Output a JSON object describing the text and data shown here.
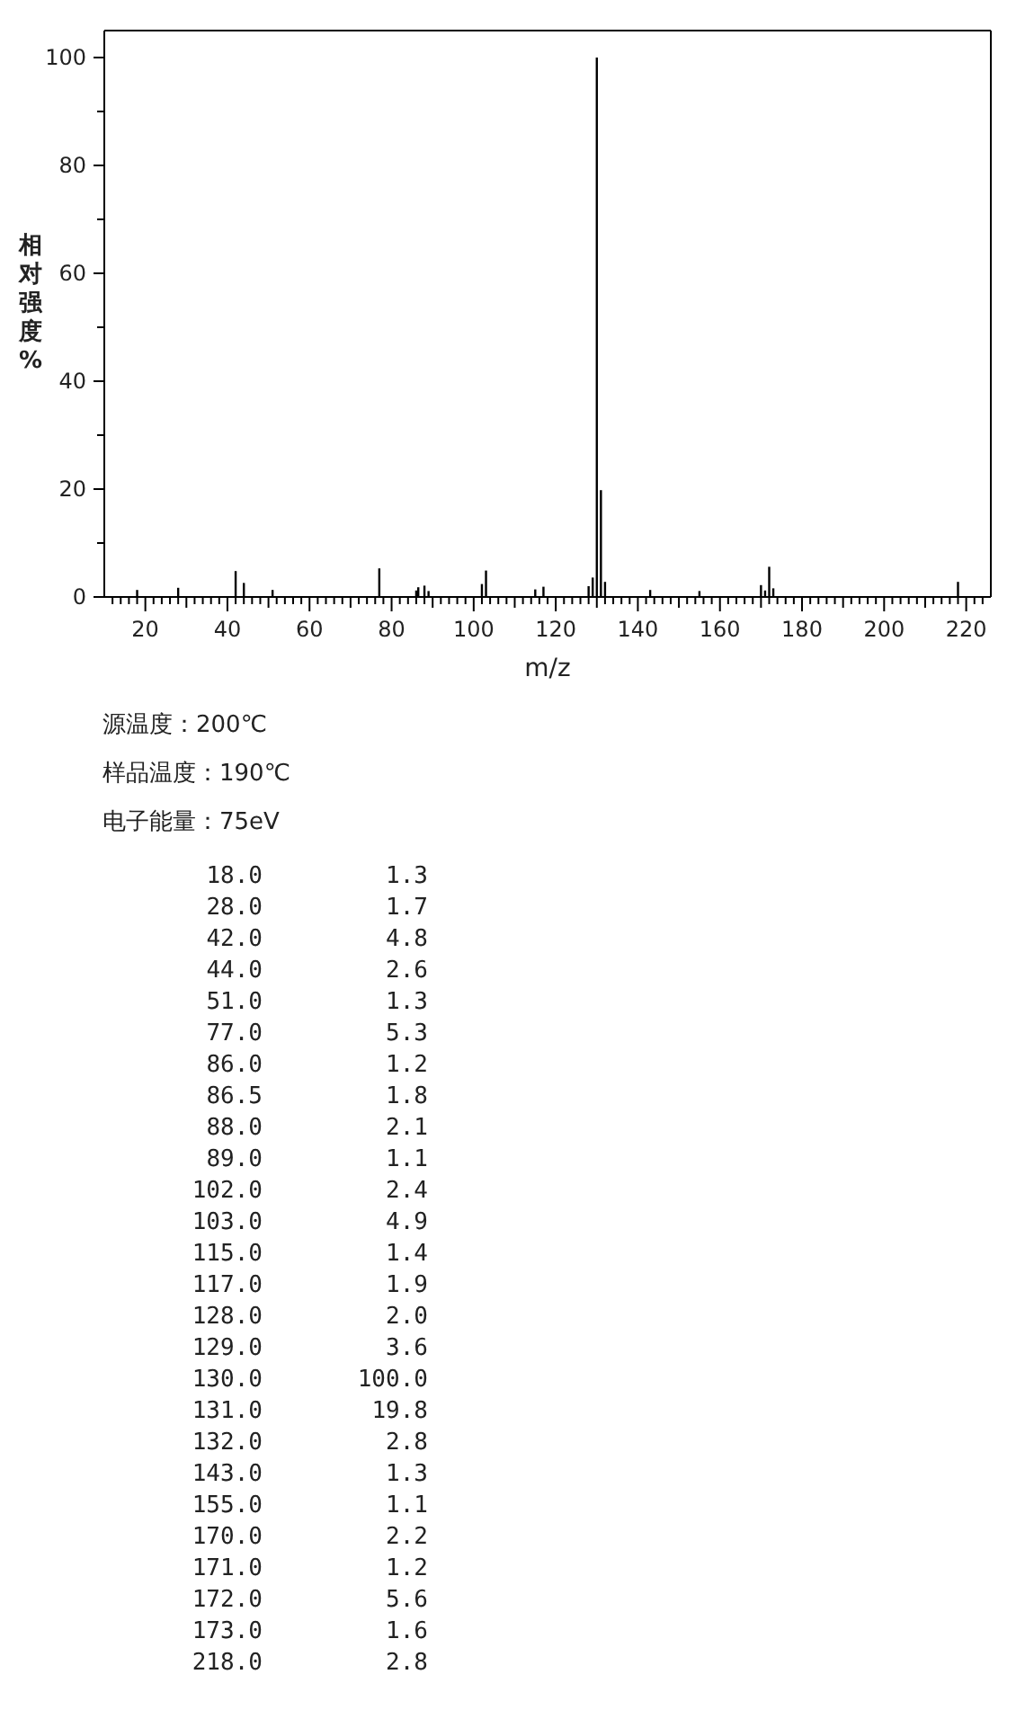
{
  "chart_data": [
    {
      "type": "bar",
      "xlabel": "m/z",
      "ylabel": "相对强度%",
      "x": [
        18.0,
        28.0,
        42.0,
        44.0,
        51.0,
        77.0,
        86.0,
        86.5,
        88.0,
        89.0,
        102.0,
        103.0,
        115.0,
        117.0,
        128.0,
        129.0,
        130.0,
        131.0,
        132.0,
        143.0,
        155.0,
        170.0,
        171.0,
        172.0,
        173.0,
        218.0
      ],
      "values": [
        1.3,
        1.7,
        4.8,
        2.6,
        1.3,
        5.3,
        1.2,
        1.8,
        2.1,
        1.1,
        2.4,
        4.9,
        1.4,
        1.9,
        2.0,
        3.6,
        100.0,
        19.8,
        2.8,
        1.3,
        1.1,
        2.2,
        1.2,
        5.6,
        1.6,
        2.8
      ],
      "color": "#000000",
      "xlim": [
        10,
        226
      ],
      "ylim": [
        0,
        105
      ],
      "xticks": [
        20,
        40,
        60,
        80,
        100,
        120,
        140,
        160,
        180,
        200,
        220
      ],
      "yticks": [
        0,
        20,
        40,
        60,
        80,
        100
      ],
      "annotations": [
        "源温度：200℃",
        "样品温度：190℃",
        "电子能量：75eV"
      ]
    },
    {
      "type": "other",
      "annotations": [
        "18.0",
        "1.3",
        "28.0",
        "1.7",
        "42.0",
        "4.8",
        "44.0",
        "2.6",
        "51.0",
        "1.3",
        "77.0",
        "5.3",
        "86.0",
        "1.2",
        "86.5",
        "1.8",
        "88.0",
        "2.1",
        "89.0",
        "1.1",
        "102.0",
        "2.4",
        "103.0",
        "4.9",
        "115.0",
        "1.4",
        "117.0",
        "1.9",
        "128.0",
        "2.0",
        "129.0",
        "3.6",
        "130.0",
        "100.0",
        "131.0",
        "19.8",
        "132.0",
        "2.8",
        "143.0",
        "1.3",
        "155.0",
        "1.1",
        "170.0",
        "2.2",
        "171.0",
        "1.2",
        "172.0",
        "5.6",
        "173.0",
        "1.6",
        "218.0",
        "2.8"
      ]
    }
  ]
}
